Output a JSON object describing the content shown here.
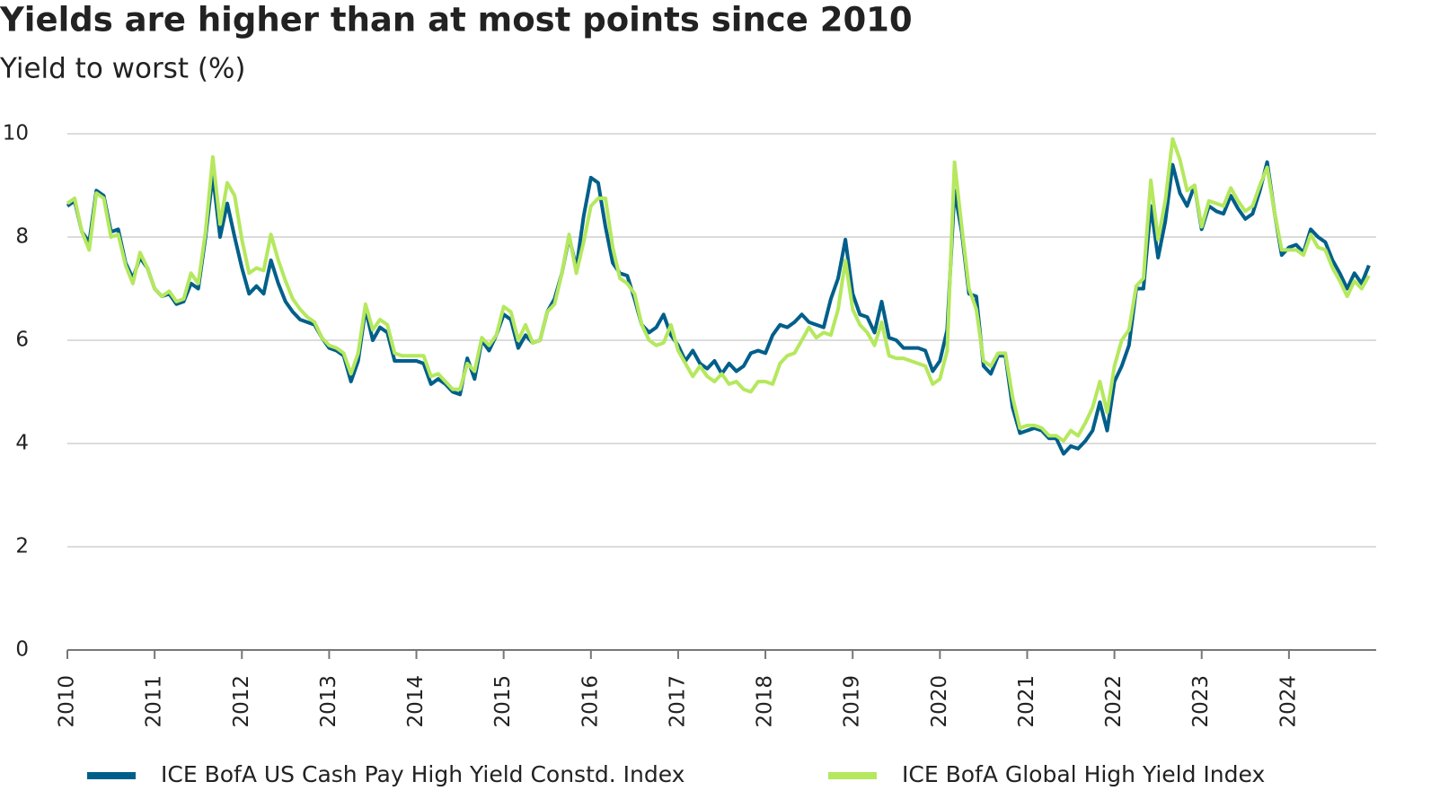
{
  "chart_data": {
    "type": "line",
    "title": "Yields are higher than at most points since 2010",
    "subtitle": "Yield to worst (%)",
    "x": [
      2010,
      2010.083,
      2010.167,
      2010.25,
      2010.333,
      2010.417,
      2010.5,
      2010.583,
      2010.667,
      2010.75,
      2010.833,
      2010.917,
      2011,
      2011.083,
      2011.167,
      2011.25,
      2011.333,
      2011.417,
      2011.5,
      2011.583,
      2011.667,
      2011.75,
      2011.833,
      2011.917,
      2012,
      2012.083,
      2012.167,
      2012.25,
      2012.333,
      2012.417,
      2012.5,
      2012.583,
      2012.667,
      2012.75,
      2012.833,
      2012.917,
      2013,
      2013.083,
      2013.167,
      2013.25,
      2013.333,
      2013.417,
      2013.5,
      2013.583,
      2013.667,
      2013.75,
      2013.833,
      2013.917,
      2014,
      2014.083,
      2014.167,
      2014.25,
      2014.333,
      2014.417,
      2014.5,
      2014.583,
      2014.667,
      2014.75,
      2014.833,
      2014.917,
      2015,
      2015.083,
      2015.167,
      2015.25,
      2015.333,
      2015.417,
      2015.5,
      2015.583,
      2015.667,
      2015.75,
      2015.833,
      2015.917,
      2016,
      2016.083,
      2016.167,
      2016.25,
      2016.333,
      2016.417,
      2016.5,
      2016.583,
      2016.667,
      2016.75,
      2016.833,
      2016.917,
      2017,
      2017.083,
      2017.167,
      2017.25,
      2017.333,
      2017.417,
      2017.5,
      2017.583,
      2017.667,
      2017.75,
      2017.833,
      2017.917,
      2018,
      2018.083,
      2018.167,
      2018.25,
      2018.333,
      2018.417,
      2018.5,
      2018.583,
      2018.667,
      2018.75,
      2018.833,
      2018.917,
      2019,
      2019.083,
      2019.167,
      2019.25,
      2019.333,
      2019.417,
      2019.5,
      2019.583,
      2019.667,
      2019.75,
      2019.833,
      2019.917,
      2020,
      2020.083,
      2020.167,
      2020.25,
      2020.333,
      2020.417,
      2020.5,
      2020.583,
      2020.667,
      2020.75,
      2020.833,
      2020.917,
      2021,
      2021.083,
      2021.167,
      2021.25,
      2021.333,
      2021.417,
      2021.5,
      2021.583,
      2021.667,
      2021.75,
      2021.833,
      2021.917,
      2022,
      2022.083,
      2022.167,
      2022.25,
      2022.333,
      2022.417,
      2022.5,
      2022.583,
      2022.667,
      2022.75,
      2022.833,
      2022.917,
      2023,
      2023.083,
      2023.167,
      2023.25,
      2023.333,
      2023.417,
      2023.5,
      2023.583,
      2023.667,
      2023.75,
      2023.833,
      2023.917,
      2024,
      2024.083,
      2024.167,
      2024.25,
      2024.333,
      2024.417,
      2024.5,
      2024.583,
      2024.667,
      2024.75,
      2024.833,
      2024.917
    ],
    "series": [
      {
        "name": "ICE BofA US Cash Pay High Yield Constd. Index",
        "color": "#005f8a",
        "values": [
          8.6,
          8.7,
          8.1,
          7.9,
          8.9,
          8.8,
          8.1,
          8.15,
          7.5,
          7.2,
          7.6,
          7.4,
          7.0,
          6.85,
          6.9,
          6.7,
          6.75,
          7.1,
          7.0,
          8.0,
          9.2,
          8.0,
          8.65,
          8.0,
          7.4,
          6.9,
          7.05,
          6.9,
          7.55,
          7.1,
          6.75,
          6.55,
          6.4,
          6.35,
          6.3,
          6.05,
          5.85,
          5.8,
          5.7,
          5.2,
          5.6,
          6.6,
          6.0,
          6.25,
          6.15,
          5.6,
          5.6,
          5.6,
          5.6,
          5.55,
          5.15,
          5.25,
          5.15,
          5.0,
          4.95,
          5.65,
          5.25,
          6.0,
          5.8,
          6.1,
          6.5,
          6.4,
          5.85,
          6.1,
          5.95,
          6.0,
          6.55,
          6.8,
          7.3,
          8.0,
          7.4,
          8.4,
          9.15,
          9.05,
          8.2,
          7.5,
          7.3,
          7.25,
          6.8,
          6.3,
          6.15,
          6.25,
          6.5,
          6.1,
          5.9,
          5.6,
          5.8,
          5.55,
          5.45,
          5.6,
          5.35,
          5.55,
          5.4,
          5.5,
          5.75,
          5.8,
          5.75,
          6.1,
          6.3,
          6.25,
          6.35,
          6.5,
          6.35,
          6.3,
          6.25,
          6.8,
          7.2,
          7.95,
          6.9,
          6.5,
          6.45,
          6.15,
          6.75,
          6.05,
          6.0,
          5.85,
          5.85,
          5.85,
          5.8,
          5.4,
          5.6,
          6.2,
          8.9,
          8.1,
          6.9,
          6.85,
          5.5,
          5.35,
          5.7,
          5.7,
          4.7,
          4.2,
          4.25,
          4.3,
          4.25,
          4.1,
          4.1,
          3.8,
          3.95,
          3.9,
          4.05,
          4.25,
          4.8,
          4.25,
          5.2,
          5.5,
          5.9,
          7.0,
          7.0,
          8.6,
          7.6,
          8.3,
          9.4,
          8.85,
          8.6,
          9.0,
          8.15,
          8.6,
          8.5,
          8.45,
          8.8,
          8.55,
          8.35,
          8.45,
          8.9,
          9.45,
          8.5,
          7.65,
          7.8,
          7.85,
          7.7,
          8.15,
          8.0,
          7.9,
          7.55,
          7.3,
          7.0,
          7.3,
          7.1,
          7.45
        ]
      },
      {
        "name": "ICE BofA Global High Yield Index",
        "color": "#b5e85e",
        "values": [
          8.65,
          8.75,
          8.1,
          7.75,
          8.85,
          8.75,
          8.0,
          8.05,
          7.45,
          7.1,
          7.7,
          7.4,
          7.0,
          6.85,
          6.95,
          6.75,
          6.8,
          7.3,
          7.1,
          8.1,
          9.55,
          8.25,
          9.05,
          8.8,
          7.95,
          7.3,
          7.4,
          7.35,
          8.05,
          7.55,
          7.15,
          6.8,
          6.6,
          6.45,
          6.35,
          6.05,
          5.9,
          5.85,
          5.75,
          5.35,
          5.75,
          6.7,
          6.2,
          6.4,
          6.3,
          5.75,
          5.7,
          5.7,
          5.7,
          5.7,
          5.3,
          5.35,
          5.2,
          5.05,
          5.05,
          5.55,
          5.4,
          6.05,
          5.9,
          6.1,
          6.65,
          6.55,
          6.0,
          6.3,
          5.95,
          6.0,
          6.55,
          6.7,
          7.3,
          8.05,
          7.3,
          7.9,
          8.6,
          8.75,
          8.75,
          7.8,
          7.2,
          7.1,
          6.9,
          6.3,
          6.0,
          5.9,
          5.95,
          6.3,
          5.8,
          5.55,
          5.3,
          5.5,
          5.3,
          5.2,
          5.35,
          5.15,
          5.2,
          5.05,
          5.0,
          5.2,
          5.2,
          5.15,
          5.55,
          5.7,
          5.75,
          6.0,
          6.25,
          6.05,
          6.15,
          6.1,
          6.6,
          7.55,
          6.6,
          6.3,
          6.15,
          5.9,
          6.35,
          5.7,
          5.65,
          5.65,
          5.6,
          5.55,
          5.5,
          5.15,
          5.25,
          5.8,
          9.45,
          8.2,
          7.0,
          6.6,
          5.6,
          5.5,
          5.75,
          5.75,
          4.9,
          4.3,
          4.35,
          4.35,
          4.3,
          4.15,
          4.15,
          4.05,
          4.25,
          4.15,
          4.4,
          4.7,
          5.2,
          4.6,
          5.5,
          6.0,
          6.2,
          7.05,
          7.2,
          9.1,
          7.95,
          8.7,
          9.9,
          9.5,
          8.9,
          9.0,
          8.2,
          8.7,
          8.65,
          8.6,
          8.95,
          8.7,
          8.5,
          8.6,
          9.0,
          9.35,
          8.5,
          7.75,
          7.75,
          7.75,
          7.65,
          8.05,
          7.8,
          7.75,
          7.4,
          7.15,
          6.85,
          7.15,
          7.0,
          7.25
        ]
      }
    ],
    "xlim": [
      2010,
      2025
    ],
    "xticks": [
      2010,
      2011,
      2012,
      2013,
      2014,
      2015,
      2016,
      2017,
      2018,
      2019,
      2020,
      2021,
      2022,
      2023,
      2024
    ],
    "ylim": [
      0,
      10
    ],
    "yticks": [
      0,
      2,
      4,
      6,
      8,
      10
    ],
    "grid": true,
    "legend": "bottom"
  }
}
